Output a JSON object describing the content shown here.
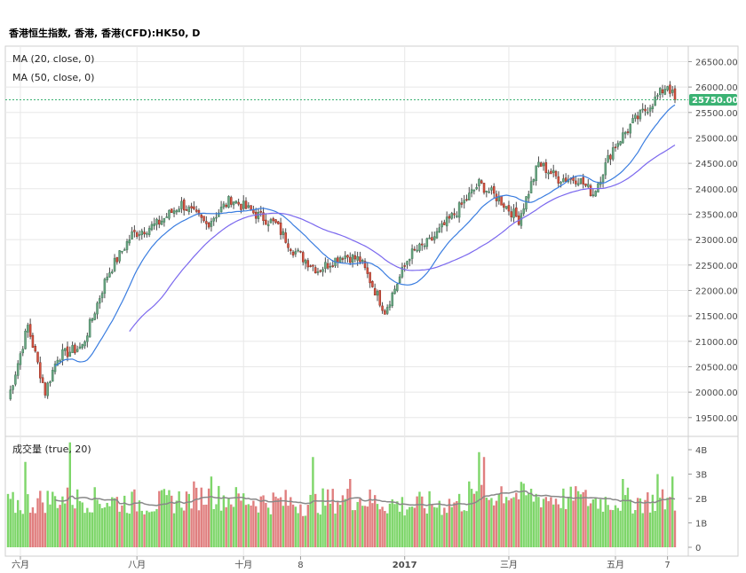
{
  "title": "香港恒生指数, 香港, 香港(CFD):HK50, D",
  "colors": {
    "up": "#6ba583",
    "down": "#d75442",
    "volume_up": "#7ed66a",
    "volume_down": "#e07f7f",
    "ma20": "#3a7de0",
    "ma50": "#7b68ee",
    "volume_ma": "#888888",
    "price_tag_bg": "#3bb273",
    "grid": "#e8e8e8"
  },
  "chart_data": {
    "type": "candlestick",
    "legend": [
      "MA (20, close, 0)",
      "MA (50, close, 0)"
    ],
    "price_axis": {
      "range": [
        19200,
        26700
      ],
      "ticks": [
        "26500.00",
        "26000.00",
        "25500.00",
        "25000.00",
        "24500.00",
        "24000.00",
        "23500.00",
        "23000.00",
        "22500.00",
        "22000.00",
        "21500.00",
        "21000.00",
        "20500.00",
        "20000.00",
        "19500.00"
      ]
    },
    "last_price": "25750.00",
    "volume_panel": {
      "label": "成交量 (true, 20)",
      "range": [
        0,
        4.4
      ],
      "ticks": [
        "4B",
        "3B",
        "2B",
        "1B",
        "0"
      ]
    },
    "x_axis": {
      "labels": [
        "六月",
        "八月",
        "十月",
        "8",
        "2017",
        "三月",
        "五月",
        "7"
      ],
      "label_index": [
        5,
        52,
        95,
        118,
        160,
        202,
        245,
        266
      ]
    },
    "bars": 270,
    "close_anchors": [
      [
        0,
        19850
      ],
      [
        8,
        21300
      ],
      [
        15,
        20000
      ],
      [
        20,
        20700
      ],
      [
        30,
        20900
      ],
      [
        40,
        22300
      ],
      [
        50,
        23100
      ],
      [
        60,
        23300
      ],
      [
        70,
        23700
      ],
      [
        80,
        23300
      ],
      [
        90,
        23800
      ],
      [
        100,
        23500
      ],
      [
        108,
        23300
      ],
      [
        115,
        22800
      ],
      [
        125,
        22400
      ],
      [
        135,
        22700
      ],
      [
        142,
        22600
      ],
      [
        152,
        21600
      ],
      [
        162,
        22700
      ],
      [
        170,
        22950
      ],
      [
        180,
        23500
      ],
      [
        190,
        24100
      ],
      [
        198,
        23800
      ],
      [
        206,
        23400
      ],
      [
        214,
        24500
      ],
      [
        222,
        24200
      ],
      [
        230,
        24200
      ],
      [
        236,
        23900
      ],
      [
        244,
        24800
      ],
      [
        252,
        25300
      ],
      [
        260,
        25700
      ],
      [
        266,
        26050
      ],
      [
        269,
        25750
      ]
    ],
    "volume_anchors": [
      [
        0,
        1.6
      ],
      [
        20,
        1.9
      ],
      [
        40,
        1.8
      ],
      [
        60,
        1.7
      ],
      [
        80,
        2.0
      ],
      [
        100,
        1.8
      ],
      [
        120,
        1.7
      ],
      [
        140,
        1.9
      ],
      [
        160,
        1.6
      ],
      [
        180,
        1.7
      ],
      [
        200,
        2.1
      ],
      [
        220,
        1.9
      ],
      [
        240,
        1.8
      ],
      [
        255,
        1.8
      ],
      [
        269,
        1.8
      ]
    ],
    "volume_spikes": [
      [
        7,
        3.5
      ],
      [
        25,
        4.3
      ],
      [
        75,
        2.7
      ],
      [
        82,
        2.9
      ],
      [
        123,
        3.7
      ],
      [
        138,
        2.8
      ],
      [
        186,
        2.7
      ],
      [
        190,
        3.9
      ],
      [
        192,
        3.7
      ],
      [
        199,
        2.5
      ],
      [
        230,
        2.3
      ],
      [
        248,
        2.8
      ],
      [
        262,
        3.0
      ],
      [
        268,
        2.9
      ]
    ]
  }
}
